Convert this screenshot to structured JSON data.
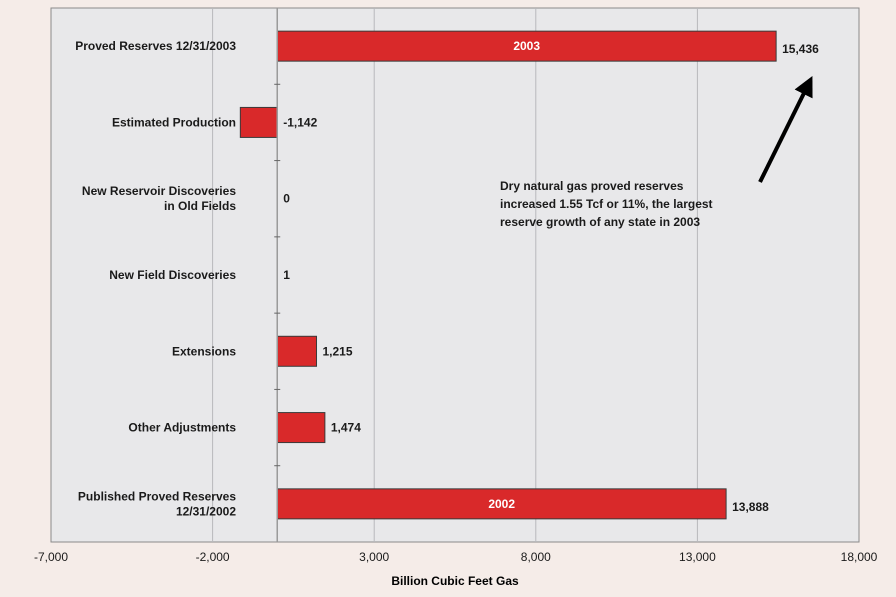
{
  "chart_data": {
    "type": "bar",
    "orientation": "horizontal",
    "categories": [
      [
        "Proved Reserves 12/31/2003"
      ],
      [
        "Estimated Production"
      ],
      [
        "New Reservoir Discoveries",
        "in Old Fields"
      ],
      [
        "New Field Discoveries"
      ],
      [
        "Extensions"
      ],
      [
        "Other Adjustments"
      ],
      [
        "Published Proved Reserves",
        "12/31/2002"
      ]
    ],
    "values": [
      15436,
      -1142,
      0,
      1,
      1215,
      1474,
      13888
    ],
    "value_labels": [
      "15,436",
      "-1,142",
      "0",
      "1",
      "1,215",
      "1,474",
      "13,888"
    ],
    "bar_inner_labels": [
      "2003",
      "",
      "",
      "",
      "",
      "",
      "2002"
    ],
    "xlabel": "Billion Cubic Feet Gas",
    "ylabel": "",
    "xlim": [
      -7000,
      18000
    ],
    "xticks": [
      -7000,
      -2000,
      3000,
      8000,
      13000,
      18000
    ],
    "xtick_labels": [
      "-7,000",
      "-2,000",
      "3,000",
      "8,000",
      "13,000",
      "18,000"
    ],
    "grid": "vertical",
    "annotation": {
      "lines": [
        "Dry natural gas proved reserves",
        "increased 1.55 Tcf or 11%, the largest",
        "reserve growth of any state in 2003"
      ]
    },
    "colors": {
      "bar": "#d9292a",
      "plot_bg": "#e8e8ea",
      "page_bg": "#f5ece8",
      "grid": "#b8b8bc"
    }
  }
}
